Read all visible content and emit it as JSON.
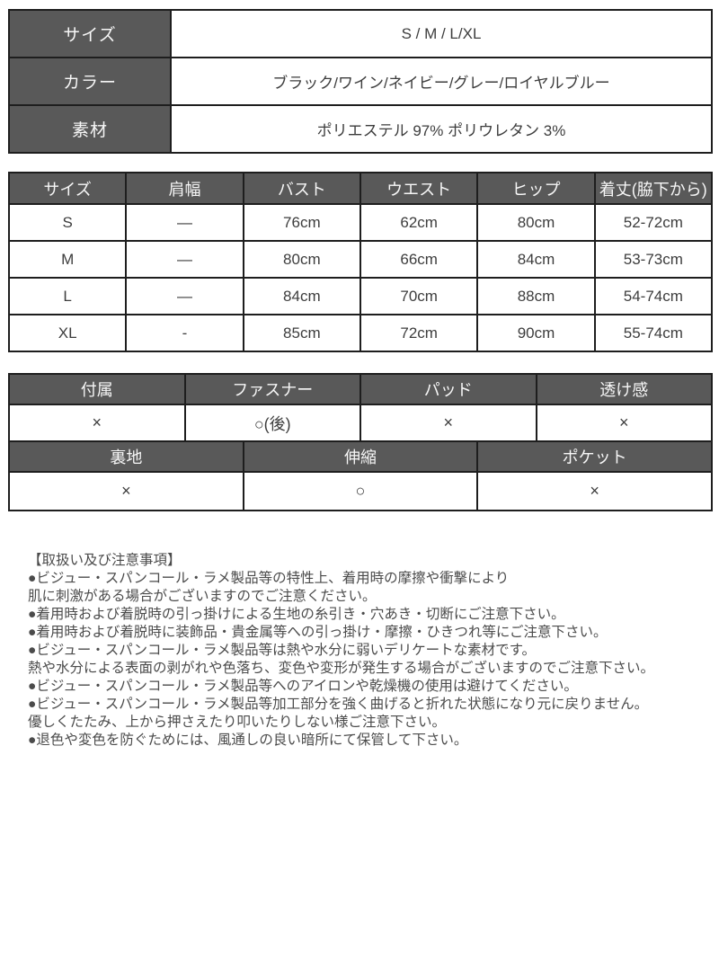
{
  "colors": {
    "header_bg": "#595959",
    "header_text": "#f7f7f7",
    "border": "#1e1e1e",
    "body_text": "#3d3d3d",
    "page_bg": "#ffffff"
  },
  "spec_table": {
    "rows": [
      {
        "label": "サイズ",
        "value": "S / M / L/XL"
      },
      {
        "label": "カラー",
        "value": "ブラック/ワイン/ネイビー/グレー/ロイヤルブルー"
      },
      {
        "label": "素材",
        "value": "ポリエステル 97% ポリウレタン 3%"
      }
    ]
  },
  "size_table": {
    "headers": [
      "サイズ",
      "肩幅",
      "バスト",
      "ウエスト",
      "ヒップ",
      "着丈(脇下から)"
    ],
    "rows": [
      [
        "S",
        "—",
        "76cm",
        "62cm",
        "80cm",
        "52-72cm"
      ],
      [
        "M",
        "—",
        "80cm",
        "66cm",
        "84cm",
        "53-73cm"
      ],
      [
        "L",
        "—",
        "84cm",
        "70cm",
        "88cm",
        "54-74cm"
      ],
      [
        "XL",
        "-",
        "85cm",
        "72cm",
        "90cm",
        "55-74cm"
      ]
    ]
  },
  "features": {
    "top": {
      "headers": [
        "付属",
        "ファスナー",
        "パッド",
        "透け感"
      ],
      "values": [
        "×",
        "○(後)",
        "×",
        "×"
      ]
    },
    "bottom": {
      "headers": [
        "裏地",
        "伸縮",
        "ポケット"
      ],
      "values": [
        "×",
        "○",
        "×"
      ]
    }
  },
  "notes": {
    "title": "【取扱い及び注意事項】",
    "lines": [
      "●ビジュー・スパンコール・ラメ製品等の特性上、着用時の摩擦や衝撃により",
      "肌に刺激がある場合がございますのでご注意ください。",
      "●着用時および着脱時の引っ掛けによる生地の糸引き・穴あき・切断にご注意下さい。",
      "●着用時および着脱時に装飾品・貴金属等への引っ掛け・摩擦・ひきつれ等にご注意下さい。",
      "●ビジュー・スパンコール・ラメ製品等は熱や水分に弱いデリケートな素材です。",
      "熱や水分による表面の剥がれや色落ち、変色や変形が発生する場合がございますのでご注意下さい。",
      "●ビジュー・スパンコール・ラメ製品等へのアイロンや乾燥機の使用は避けてください。",
      "●ビジュー・スパンコール・ラメ製品等加工部分を強く曲げると折れた状態になり元に戻りません。",
      "優しくたたみ、上から押さえたり叩いたりしない様ご注意下さい。",
      "●退色や変色を防ぐためには、風通しの良い暗所にて保管して下さい。"
    ]
  }
}
